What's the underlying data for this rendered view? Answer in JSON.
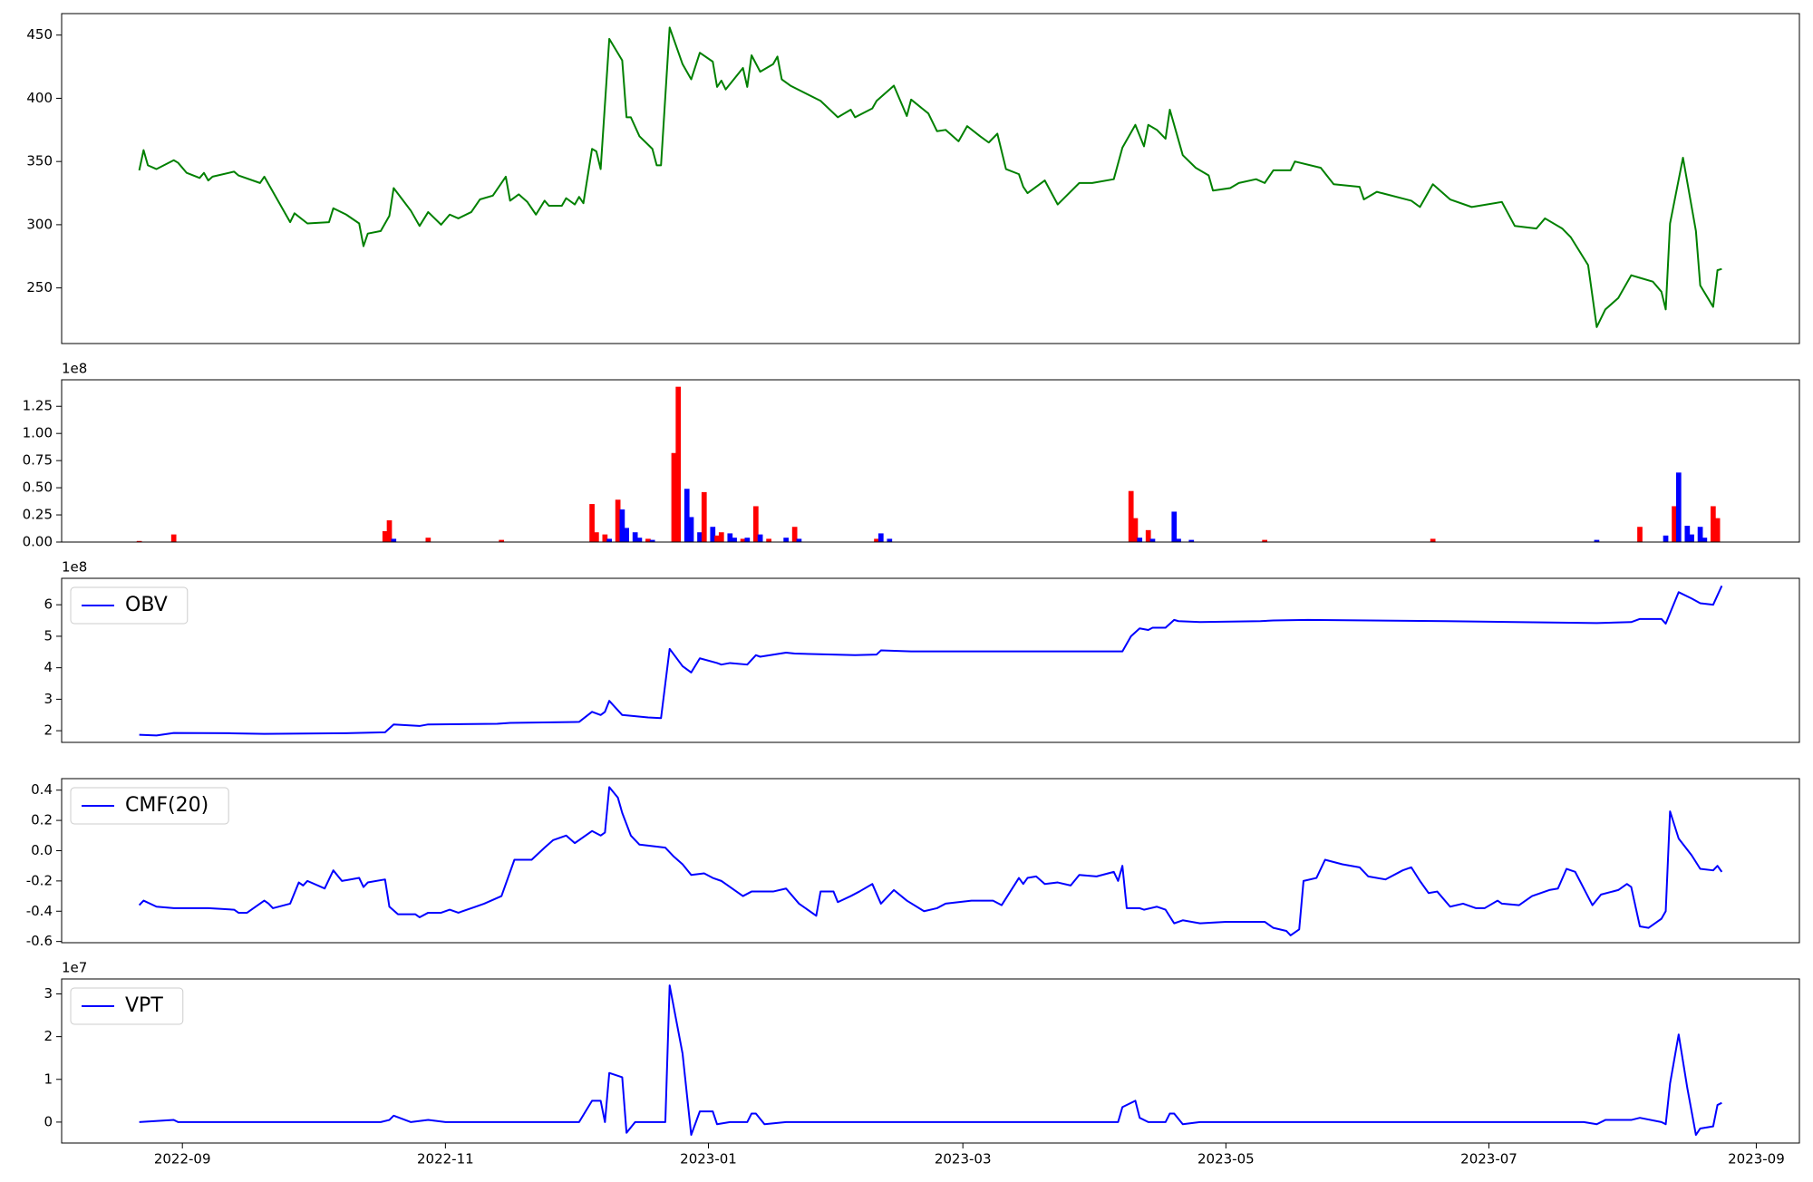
{
  "chart_data": [
    {
      "type": "line",
      "color": "#008000",
      "xlim": [
        -28,
        375
      ],
      "ylim": [
        206,
        467
      ],
      "yticks": [
        250,
        300,
        350,
        400,
        450
      ],
      "x": [
        -10,
        -9,
        -8,
        -6,
        -2,
        -1,
        1,
        4,
        5,
        6,
        7,
        12,
        13,
        18,
        19,
        21,
        25,
        26,
        29,
        34,
        35,
        38,
        41,
        42,
        43,
        46,
        48,
        49,
        51,
        53,
        55,
        57,
        60,
        62,
        64,
        67,
        69,
        72,
        75,
        76,
        78,
        80,
        82,
        84,
        85,
        88,
        89,
        91,
        92,
        93,
        95,
        96,
        97,
        99,
        102,
        103,
        104,
        106,
        109,
        110,
        111,
        113,
        116,
        118,
        120,
        123,
        124,
        125,
        126,
        130,
        131,
        132,
        134,
        137,
        138,
        139,
        141,
        148,
        152,
        155,
        156,
        160,
        161,
        165,
        168,
        169,
        173,
        175,
        177,
        180,
        182,
        185,
        187,
        189,
        191,
        194,
        195,
        196,
        200,
        203,
        208,
        211,
        216,
        218,
        221,
        223,
        224,
        226,
        228,
        229,
        232,
        235,
        238,
        239,
        243,
        245,
        249,
        251,
        253,
        257,
        258,
        264,
        267,
        273,
        274,
        277,
        285,
        287,
        290,
        294,
        299,
        306,
        309,
        314,
        316,
        320,
        322,
        326,
        328,
        330,
        333,
        336,
        338,
        341,
        343,
        344,
        345,
        348,
        351,
        352,
        355,
        356,
        357
      ],
      "values": [
        343,
        359,
        347,
        344,
        351,
        349,
        341,
        337,
        341,
        335,
        338,
        342,
        339,
        333,
        338,
        326,
        302,
        309,
        301,
        302,
        313,
        308,
        301,
        283,
        293,
        295,
        307,
        329,
        320,
        311,
        299,
        310,
        300,
        308,
        305,
        310,
        320,
        323,
        338,
        319,
        324,
        318,
        308,
        319,
        315,
        315,
        321,
        316,
        322,
        317,
        360,
        358,
        344,
        447,
        430,
        385,
        385,
        370,
        360,
        347,
        347,
        456,
        427,
        415,
        436,
        429,
        409,
        414,
        407,
        424,
        409,
        434,
        421,
        427,
        433,
        415,
        410,
        398,
        385,
        391,
        385,
        392,
        398,
        410,
        386,
        399,
        388,
        374,
        375,
        366,
        378,
        370,
        365,
        372,
        344,
        340,
        330,
        325,
        335,
        316,
        333,
        333,
        336,
        361,
        379,
        362,
        379,
        375,
        368,
        391,
        355,
        345,
        339,
        327,
        329,
        333,
        336,
        333,
        343,
        343,
        350,
        345,
        332,
        330,
        320,
        326,
        319,
        314,
        332,
        320,
        314,
        318,
        299,
        297,
        305,
        297,
        290,
        268,
        219,
        233,
        242,
        260,
        258,
        255,
        247,
        233,
        301,
        353,
        295,
        252,
        235,
        264,
        265
      ]
    },
    {
      "type": "bar",
      "y_offset": "1e8",
      "xlim": [
        -28,
        375
      ],
      "ylim": [
        0,
        1.494
      ],
      "yticks": [
        {
          "value": 0,
          "label": "0.00"
        },
        {
          "value": 0.25,
          "label": "0.25"
        },
        {
          "value": 0.5,
          "label": "0.50"
        },
        {
          "value": 0.75,
          "label": "0.75"
        },
        {
          "value": 1,
          "label": "1.00"
        },
        {
          "value": 1.25,
          "label": "1.25"
        }
      ],
      "x": [
        -10,
        -2,
        47,
        48,
        49,
        57,
        74,
        95,
        96,
        98,
        99,
        101,
        102,
        103,
        105,
        106,
        108,
        109,
        114,
        115,
        117,
        118,
        120,
        121,
        123,
        124,
        125,
        127,
        128,
        130,
        131,
        133,
        134,
        136,
        140,
        142,
        143,
        161,
        162,
        164,
        220,
        221,
        222,
        224,
        225,
        230,
        231,
        234,
        251,
        290,
        328,
        338,
        344,
        346,
        347,
        349,
        350,
        352,
        353,
        355,
        356
      ],
      "values": [
        0.01,
        0.07,
        0.1,
        0.2,
        0.03,
        0.04,
        0.02,
        0.35,
        0.09,
        0.07,
        0.03,
        0.39,
        0.3,
        0.13,
        0.09,
        0.04,
        0.03,
        0.02,
        0.82,
        1.43,
        0.49,
        0.23,
        0.09,
        0.46,
        0.14,
        0.06,
        0.09,
        0.08,
        0.04,
        0.03,
        0.04,
        0.33,
        0.07,
        0.03,
        0.04,
        0.14,
        0.03,
        0.03,
        0.08,
        0.03,
        0.47,
        0.22,
        0.04,
        0.11,
        0.03,
        0.28,
        0.03,
        0.02,
        0.02,
        0.03,
        0.02,
        0.14,
        0.06,
        0.33,
        0.64,
        0.15,
        0.07,
        0.14,
        0.04,
        0.33,
        0.22
      ],
      "colors": [
        "#ff0000",
        "#ff0000",
        "#ff0000",
        "#ff0000",
        "#0000ff",
        "#ff0000",
        "#ff0000",
        "#ff0000",
        "#ff0000",
        "#ff0000",
        "#0000ff",
        "#ff0000",
        "#0000ff",
        "#0000ff",
        "#0000ff",
        "#0000ff",
        "#ff0000",
        "#0000ff",
        "#ff0000",
        "#ff0000",
        "#0000ff",
        "#0000ff",
        "#0000ff",
        "#ff0000",
        "#0000ff",
        "#ff0000",
        "#ff0000",
        "#0000ff",
        "#0000ff",
        "#ff0000",
        "#0000ff",
        "#ff0000",
        "#0000ff",
        "#ff0000",
        "#0000ff",
        "#ff0000",
        "#0000ff",
        "#ff0000",
        "#0000ff",
        "#0000ff",
        "#ff0000",
        "#ff0000",
        "#0000ff",
        "#ff0000",
        "#0000ff",
        "#0000ff",
        "#0000ff",
        "#0000ff",
        "#ff0000",
        "#ff0000",
        "#0000ff",
        "#ff0000",
        "#0000ff",
        "#ff0000",
        "#0000ff",
        "#0000ff",
        "#0000ff",
        "#0000ff",
        "#0000ff",
        "#ff0000",
        "#ff0000"
      ]
    },
    {
      "type": "line",
      "y_offset": "1e8",
      "legend": "upper left",
      "xlim": [
        -28,
        375
      ],
      "ylim": [
        1.63,
        6.84
      ],
      "yticks": [
        2,
        3,
        4,
        5,
        6
      ],
      "x": [
        -10,
        -6,
        -2,
        11,
        19,
        38,
        47,
        49,
        55,
        57,
        73,
        76,
        92,
        95,
        97,
        98,
        99,
        102,
        108,
        111,
        113,
        116,
        118,
        120,
        124,
        125,
        127,
        131,
        133,
        134,
        140,
        142,
        156,
        161,
        162,
        169,
        194,
        218,
        220,
        222,
        224,
        225,
        228,
        230,
        231,
        236,
        250,
        253,
        261,
        293,
        328,
        336,
        338,
        343,
        344,
        347,
        350,
        352,
        355,
        357
      ],
      "series": [
        {
          "name": "OBV",
          "color": "#0000ff",
          "values": [
            1.87,
            1.85,
            1.93,
            1.92,
            1.9,
            1.92,
            1.95,
            2.2,
            2.15,
            2.2,
            2.22,
            2.25,
            2.28,
            2.6,
            2.5,
            2.6,
            2.95,
            2.5,
            2.42,
            2.4,
            4.6,
            4.05,
            3.85,
            4.3,
            4.15,
            4.1,
            4.15,
            4.1,
            4.4,
            4.35,
            4.48,
            4.45,
            4.4,
            4.42,
            4.55,
            4.52,
            4.52,
            4.52,
            5.0,
            5.25,
            5.2,
            5.27,
            5.27,
            5.52,
            5.48,
            5.45,
            5.48,
            5.5,
            5.52,
            5.48,
            5.42,
            5.45,
            5.55,
            5.55,
            5.4,
            6.4,
            6.2,
            6.05,
            6.0,
            6.6
          ]
        }
      ]
    },
    {
      "type": "line",
      "legend": "upper left",
      "xlim": [
        -28,
        375
      ],
      "ylim": [
        -0.608,
        0.476
      ],
      "yticks": [
        0.4,
        0.2,
        {
          "value": 0,
          "label": "0.0"
        },
        -0.2,
        -0.4,
        -0.6
      ],
      "x": [
        -10,
        -9,
        -6,
        -2,
        6,
        12,
        13,
        15,
        19,
        20,
        21,
        25,
        27,
        28,
        29,
        33,
        35,
        37,
        41,
        42,
        43,
        47,
        48,
        50,
        54,
        55,
        57,
        60,
        62,
        64,
        68,
        70,
        74,
        77,
        81,
        84,
        86,
        89,
        91,
        95,
        97,
        98,
        99,
        101,
        102,
        104,
        106,
        112,
        114,
        116,
        118,
        121,
        123,
        125,
        126,
        130,
        132,
        137,
        140,
        143,
        147,
        148,
        151,
        152,
        155,
        157,
        160,
        162,
        165,
        168,
        172,
        175,
        177,
        183,
        188,
        190,
        194,
        195,
        196,
        198,
        200,
        203,
        206,
        208,
        212,
        216,
        217,
        218,
        219,
        222,
        223,
        226,
        228,
        230,
        232,
        236,
        242,
        247,
        251,
        253,
        256,
        257,
        259,
        260,
        263,
        265,
        269,
        273,
        275,
        279,
        283,
        285,
        287,
        289,
        291,
        294,
        297,
        300,
        302,
        305,
        306,
        310,
        313,
        317,
        319,
        321,
        323,
        325,
        327,
        329,
        333,
        335,
        336,
        338,
        340,
        343,
        344,
        345,
        347,
        350,
        352,
        355,
        356,
        357
      ],
      "series": [
        {
          "name": "CMF(20)",
          "color": "#0000ff",
          "values": [
            -0.36,
            -0.33,
            -0.37,
            -0.38,
            -0.38,
            -0.39,
            -0.41,
            -0.41,
            -0.33,
            -0.35,
            -0.38,
            -0.35,
            -0.21,
            -0.23,
            -0.2,
            -0.25,
            -0.13,
            -0.2,
            -0.18,
            -0.24,
            -0.21,
            -0.19,
            -0.37,
            -0.42,
            -0.42,
            -0.44,
            -0.41,
            -0.41,
            -0.39,
            -0.41,
            -0.37,
            -0.35,
            -0.3,
            -0.06,
            -0.06,
            0.02,
            0.07,
            0.1,
            0.05,
            0.13,
            0.1,
            0.12,
            0.42,
            0.35,
            0.25,
            0.1,
            0.04,
            0.02,
            -0.04,
            -0.09,
            -0.16,
            -0.15,
            -0.18,
            -0.2,
            -0.22,
            -0.3,
            -0.27,
            -0.27,
            -0.25,
            -0.35,
            -0.43,
            -0.27,
            -0.27,
            -0.34,
            -0.3,
            -0.27,
            -0.22,
            -0.35,
            -0.26,
            -0.33,
            -0.4,
            -0.38,
            -0.35,
            -0.33,
            -0.33,
            -0.36,
            -0.18,
            -0.22,
            -0.18,
            -0.17,
            -0.22,
            -0.21,
            -0.23,
            -0.16,
            -0.17,
            -0.14,
            -0.2,
            -0.1,
            -0.38,
            -0.38,
            -0.39,
            -0.37,
            -0.39,
            -0.48,
            -0.46,
            -0.48,
            -0.47,
            -0.47,
            -0.47,
            -0.51,
            -0.53,
            -0.56,
            -0.52,
            -0.2,
            -0.18,
            -0.06,
            -0.09,
            -0.11,
            -0.17,
            -0.19,
            -0.13,
            -0.11,
            -0.2,
            -0.28,
            -0.27,
            -0.37,
            -0.35,
            -0.38,
            -0.38,
            -0.33,
            -0.35,
            -0.36,
            -0.3,
            -0.26,
            -0.25,
            -0.12,
            -0.14,
            -0.25,
            -0.36,
            -0.29,
            -0.26,
            -0.22,
            -0.24,
            -0.5,
            -0.51,
            -0.45,
            -0.4,
            0.26,
            0.08,
            -0.03,
            -0.12,
            -0.13,
            -0.1,
            -0.14
          ]
        }
      ]
    },
    {
      "type": "line",
      "y_offset": "1e7",
      "legend": "upper left",
      "xlim": [
        -28,
        375
      ],
      "ylim": [
        -0.49,
        3.35
      ],
      "yticks": [
        0,
        1,
        2,
        3
      ],
      "xticks": [
        {
          "value": 0,
          "label": "2022-09"
        },
        {
          "value": 61,
          "label": "2022-11"
        },
        {
          "value": 122,
          "label": "2023-01"
        },
        {
          "value": 181,
          "label": "2023-03"
        },
        {
          "value": 242,
          "label": "2023-05"
        },
        {
          "value": 303,
          "label": "2023-07"
        },
        {
          "value": 365,
          "label": "2023-09"
        }
      ],
      "x": [
        -10,
        -2,
        -1,
        46,
        48,
        49,
        53,
        57,
        61,
        92,
        95,
        97,
        98,
        99,
        102,
        103,
        105,
        111,
        112,
        113,
        116,
        118,
        120,
        123,
        124,
        127,
        131,
        132,
        133,
        135,
        140,
        199,
        217,
        218,
        221,
        222,
        224,
        228,
        229,
        230,
        232,
        236,
        325,
        328,
        330,
        336,
        338,
        343,
        344,
        345,
        347,
        349,
        351,
        352,
        355,
        356,
        357
      ],
      "series": [
        {
          "name": "VPT",
          "color": "#0000ff",
          "values": [
            0,
            0.05,
            0,
            0,
            0.05,
            0.15,
            0,
            0.05,
            0,
            0,
            0.5,
            0.5,
            0,
            1.15,
            1.05,
            -0.25,
            0,
            0,
            0,
            3.2,
            1.6,
            -0.3,
            0.25,
            0.25,
            -0.05,
            0,
            0,
            0.2,
            0.2,
            -0.05,
            0,
            0,
            0,
            0.35,
            0.5,
            0.1,
            0,
            0,
            0.2,
            0.2,
            -0.05,
            0,
            0,
            -0.05,
            0.05,
            0.05,
            0.1,
            0,
            -0.05,
            0.9,
            2.05,
            0.8,
            -0.3,
            -0.15,
            -0.1,
            0.4,
            0.45
          ]
        }
      ]
    }
  ]
}
